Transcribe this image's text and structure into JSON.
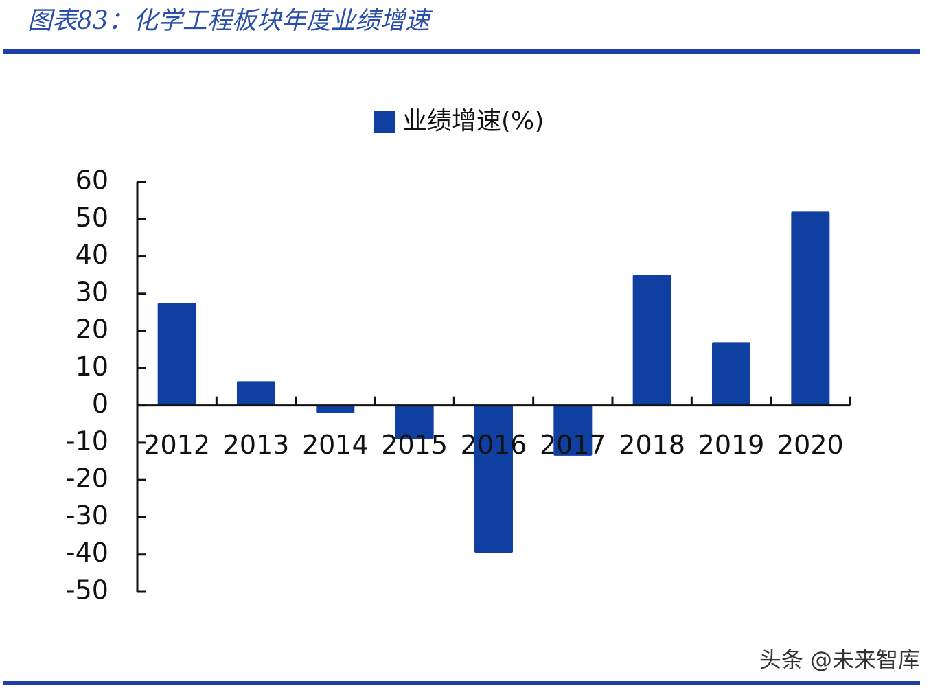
{
  "chart_data": {
    "type": "bar",
    "title": "图表83：化学工程板块年度业绩增速",
    "categories": [
      "2012",
      "2013",
      "2014",
      "2015",
      "2016",
      "2017",
      "2018",
      "2019",
      "2020"
    ],
    "series": [
      {
        "name": "业绩增速(%)",
        "color": "#0f3fa0",
        "values": [
          27.5,
          6.5,
          -2,
          -9,
          -39.5,
          -13.5,
          35,
          17,
          52
        ]
      }
    ],
    "ylim": [
      -50,
      60
    ],
    "yticks": [
      -50,
      -40,
      -30,
      -20,
      -10,
      0,
      10,
      20,
      30,
      40,
      50,
      60
    ],
    "legend": "top"
  },
  "watermark": "头条 @未来智库"
}
